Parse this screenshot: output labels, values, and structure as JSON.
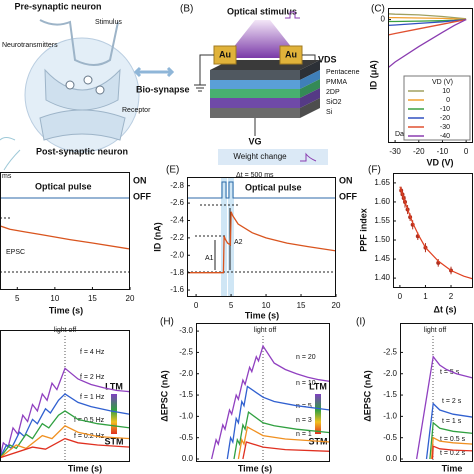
{
  "figure": {
    "panel_a": {
      "labels": [
        "Pre-synaptic neuron",
        "Stimulus",
        "Neurotransmitters",
        "Bio-synapse",
        "Receptor",
        "Post-synaptic neuron"
      ]
    },
    "panel_b": {
      "panel": "(B)",
      "title": "Optical stimulus",
      "electrodes": [
        "Au",
        "Au"
      ],
      "vds": "VDS",
      "layers": [
        "Pentacene",
        "PMMA",
        "2DP",
        "SiO2",
        "Si"
      ],
      "vg": "VG",
      "caption": "Weight change"
    }
  },
  "chart_data": [
    {
      "type": "line",
      "panel": "(C)",
      "xlabel": "VD (V)",
      "ylabel": "ID (μA)",
      "legend": true,
      "legend_title": "VD (V)",
      "annotations": [
        "Dark"
      ],
      "xlim": [
        -33,
        2.9
      ],
      "ylim": [
        -3.2,
        0.3
      ],
      "xticks": [
        -30,
        -20,
        -10,
        0
      ],
      "yticks": [
        0
      ],
      "series": [
        {
          "name": "10",
          "color": "#a0a060",
          "x": [
            -33,
            -30,
            -20,
            -10,
            -5,
            0
          ],
          "y": [
            0.15,
            0.14,
            0.12,
            0.08,
            0.05,
            0.02
          ]
        },
        {
          "name": "0",
          "color": "#f0a030",
          "x": [
            -33,
            -30,
            -20,
            -10,
            -5,
            0
          ],
          "y": [
            0.05,
            0.05,
            0.04,
            0.03,
            0.02,
            0
          ]
        },
        {
          "name": "-10",
          "color": "#3aa040",
          "x": [
            -33,
            -30,
            -20,
            -10,
            -5,
            0
          ],
          "y": [
            -0.05,
            -0.05,
            -0.04,
            -0.03,
            -0.02,
            0
          ]
        },
        {
          "name": "-20",
          "color": "#3050c0",
          "x": [
            -33,
            -30,
            -20,
            -10,
            -5,
            0
          ],
          "y": [
            -0.15,
            -0.14,
            -0.1,
            -0.06,
            -0.03,
            0
          ]
        },
        {
          "name": "-30",
          "color": "#e05030",
          "x": [
            -33,
            -30,
            -20,
            -10,
            -5,
            0
          ],
          "y": [
            -0.4,
            -0.36,
            -0.24,
            -0.12,
            -0.06,
            0
          ]
        },
        {
          "name": "-40",
          "color": "#8a3cb0",
          "x": [
            -33,
            -30,
            -20,
            -10,
            -5,
            0
          ],
          "y": [
            -1.25,
            -1.1,
            -0.7,
            -0.33,
            -0.15,
            0
          ]
        }
      ]
    },
    {
      "type": "line",
      "xlabel": "Time (s)",
      "annotations": [
        "ms",
        "Optical pulse",
        "EPSC",
        "ON",
        "OFF"
      ],
      "xlim": [
        2.7,
        20
      ],
      "ylim": [
        -1.52,
        -2.9
      ],
      "xticks": [
        5,
        10,
        15,
        20
      ],
      "series": [
        {
          "color": "#d9541e",
          "x": [
            2.7,
            4,
            6,
            8,
            10,
            12,
            15,
            20
          ],
          "y": [
            -2.27,
            -2.23,
            -2.2,
            -2.17,
            -2.14,
            -2.11,
            -2.07,
            -2.0
          ]
        }
      ]
    },
    {
      "type": "line",
      "panel": "(E)",
      "xlabel": "Time (s)",
      "ylabel": "ID (nA)",
      "annotations": [
        "Δt = 500 ms",
        "Optical pulse",
        "ON",
        "OFF",
        "A1",
        "A2"
      ],
      "xlim": [
        -1.3,
        20
      ],
      "ylim": [
        -1.52,
        -2.9
      ],
      "xticks": [
        0,
        5,
        10,
        15,
        20
      ],
      "yticks": [
        -2.8,
        -2.6,
        -2.4,
        -2.2,
        -2.0,
        -1.8,
        -1.6
      ],
      "series": [
        {
          "color": "#d9541e",
          "x": [
            -1.3,
            3.9,
            4,
            4.2,
            4.5,
            4.9,
            5,
            5.2,
            6,
            8,
            10,
            13,
            16,
            20
          ],
          "y": [
            -1.8,
            -1.8,
            -2.22,
            -2.18,
            -2.14,
            -2.12,
            -2.5,
            -2.46,
            -2.36,
            -2.26,
            -2.2,
            -2.14,
            -2.1,
            -2.05
          ]
        }
      ]
    },
    {
      "type": "scatter",
      "panel": "(F)",
      "xlabel": "Δt (s)",
      "ylabel": "PPF index",
      "xlim": [
        -0.27,
        2.86
      ],
      "ylim": [
        1.374,
        1.676
      ],
      "xticks": [
        0,
        1,
        2
      ],
      "yticks": [
        1.65,
        1.6,
        1.55,
        1.5,
        1.45,
        1.4
      ],
      "series": [
        {
          "color": "#b03020",
          "x": [
            0.05,
            0.1,
            0.15,
            0.2,
            0.3,
            0.4,
            0.5,
            0.7,
            1.0,
            1.5,
            2.0
          ],
          "y": [
            1.63,
            1.62,
            1.61,
            1.6,
            1.58,
            1.56,
            1.54,
            1.51,
            1.48,
            1.44,
            1.42
          ],
          "errors": [
            0.01,
            0.012,
            0.01,
            0.015,
            0.012,
            0.01,
            0.012,
            0.01,
            0.012,
            0.01,
            0.01
          ]
        },
        {
          "color": "#e04020",
          "mode": "line",
          "x": [
            0,
            0.25,
            0.5,
            0.75,
            1,
            1.5,
            2,
            2.5,
            2.86
          ],
          "y": [
            1.64,
            1.59,
            1.545,
            1.51,
            1.48,
            1.445,
            1.42,
            1.405,
            1.398
          ]
        }
      ]
    },
    {
      "type": "line",
      "xlabel": "Time (s)",
      "annotations": [
        "light off",
        "LTM",
        "STM"
      ],
      "xlim": [
        0,
        40
      ],
      "ylim": [
        0.1,
        -3.0
      ],
      "series": [
        {
          "name": "f = 4 Hz",
          "color": "#9040c0",
          "x": [
            0,
            1,
            2.5,
            4,
            5.5,
            7,
            8.5,
            10,
            11.5,
            13,
            14.5,
            16,
            17.5,
            20,
            24,
            28,
            32,
            36,
            40
          ],
          "y": [
            0,
            -0.35,
            -0.25,
            -0.7,
            -0.55,
            -1.0,
            -0.85,
            -1.25,
            -1.1,
            -1.5,
            -1.35,
            -1.75,
            -1.6,
            -2.1,
            -1.85,
            -1.72,
            -1.64,
            -1.58,
            -1.55
          ]
        },
        {
          "name": "f = 2 Hz",
          "color": "#3060d0",
          "x": [
            0,
            2,
            3.5,
            6,
            7.5,
            10,
            11.5,
            14,
            15.5,
            18,
            20,
            24,
            28,
            34,
            40
          ],
          "y": [
            0,
            -0.3,
            -0.22,
            -0.6,
            -0.5,
            -0.9,
            -0.8,
            -1.15,
            -1.05,
            -1.35,
            -1.5,
            -1.3,
            -1.2,
            -1.1,
            -1.02
          ]
        },
        {
          "name": "f = 1 Hz",
          "color": "#30a040",
          "x": [
            0,
            3,
            5,
            8,
            10,
            13,
            15,
            18,
            20,
            24,
            30,
            40
          ],
          "y": [
            0,
            -0.3,
            -0.22,
            -0.55,
            -0.45,
            -0.8,
            -0.7,
            -1.0,
            -1.1,
            -0.9,
            -0.8,
            -0.7
          ]
        },
        {
          "name": "f = 0.5 Hz",
          "color": "#f09020",
          "x": [
            0,
            5,
            8,
            13,
            16,
            20,
            24,
            30,
            40
          ],
          "y": [
            0,
            -0.3,
            -0.22,
            -0.52,
            -0.45,
            -0.75,
            -0.6,
            -0.5,
            -0.45
          ]
        },
        {
          "name": "f = 0.2 Hz",
          "color": "#e03020",
          "x": [
            0,
            10,
            14,
            20,
            24,
            30,
            40
          ],
          "y": [
            0,
            -0.25,
            -0.2,
            -0.45,
            -0.35,
            -0.3,
            -0.25
          ]
        }
      ]
    },
    {
      "type": "line",
      "panel": "(H)",
      "xlabel": "Time (s)",
      "ylabel": "ΔEPSC (nA)",
      "annotations": [
        "light off",
        "LTM",
        "STM"
      ],
      "xlim": [
        -5,
        55
      ],
      "ylim": [
        0.07,
        -3.19
      ],
      "yticks": [
        -3.0,
        -2.5,
        -2.0,
        -1.5,
        -1.0,
        -0.5,
        0.0
      ],
      "series": [
        {
          "name": "n = 20",
          "color": "#9040c0",
          "x": [
            2,
            4,
            5,
            7,
            8,
            10,
            11,
            13,
            14,
            16,
            17,
            19,
            20,
            22,
            23,
            25,
            30,
            35,
            40,
            45,
            50,
            55
          ],
          "y": [
            0,
            -0.45,
            -0.35,
            -0.8,
            -0.7,
            -1.15,
            -1.05,
            -1.5,
            -1.4,
            -1.85,
            -1.75,
            -2.15,
            -2.05,
            -2.4,
            -2.3,
            -2.65,
            -2.25,
            -2.1,
            -2.0,
            -1.92,
            -1.86,
            -1.82
          ]
        },
        {
          "name": "n = 10",
          "color": "#3060d0",
          "x": [
            9,
            10.5,
            11.5,
            13,
            14,
            15.5,
            16.5,
            18,
            25,
            30,
            40,
            55
          ],
          "y": [
            0,
            -0.5,
            -0.4,
            -0.95,
            -0.85,
            -1.35,
            -1.25,
            -1.7,
            -1.45,
            -1.35,
            -1.25,
            -1.15
          ]
        },
        {
          "name": "n = 5",
          "color": "#30a040",
          "x": [
            12,
            13.5,
            14.5,
            16,
            17,
            18.5,
            25,
            30,
            40,
            55
          ],
          "y": [
            0,
            -0.45,
            -0.35,
            -0.8,
            -0.7,
            -1.1,
            -0.85,
            -0.78,
            -0.7,
            -0.62
          ]
        },
        {
          "name": "n = 3",
          "color": "#f09020",
          "x": [
            14,
            15.5,
            16.5,
            18,
            25,
            35,
            55
          ],
          "y": [
            0,
            -0.45,
            -0.35,
            -0.75,
            -0.55,
            -0.47,
            -0.4
          ]
        },
        {
          "name": "n = 1",
          "color": "#e03020",
          "x": [
            16,
            17.5,
            25,
            35,
            55
          ],
          "y": [
            0,
            -0.4,
            -0.28,
            -0.22,
            -0.18
          ]
        }
      ]
    },
    {
      "type": "line",
      "panel": "(I)",
      "xlabel": "Time",
      "ylabel": "ΔEPSC (nA)",
      "annotations": [
        "light off"
      ],
      "xlim": [
        -2,
        20
      ],
      "ylim": [
        0.07,
        -3.19
      ],
      "yticks": [
        -2.5,
        -2.0,
        -1.5,
        -1.0,
        -0.5,
        0.0
      ],
      "series": [
        {
          "name": "t = 5 s",
          "color": "#9040c0",
          "x": [
            3,
            8,
            10,
            12,
            15,
            20
          ],
          "y": [
            0,
            -2.4,
            -2.2,
            -2.1,
            -2.0,
            -1.9
          ]
        },
        {
          "name": "t = 2 s",
          "color": "#3060d0",
          "x": [
            6,
            8,
            10,
            14,
            20
          ],
          "y": [
            0,
            -1.3,
            -1.15,
            -1.05,
            -0.98
          ]
        },
        {
          "name": "t = 1 s",
          "color": "#30a040",
          "x": [
            7,
            8,
            10,
            14,
            20
          ],
          "y": [
            0,
            -0.85,
            -0.72,
            -0.65,
            -0.6
          ]
        },
        {
          "name": "t = 0.5 s",
          "color": "#f09020",
          "x": [
            7.5,
            8,
            10,
            14,
            20
          ],
          "y": [
            0,
            -0.5,
            -0.42,
            -0.38,
            -0.35
          ]
        },
        {
          "name": "t = 0.2 s",
          "color": "#e03020",
          "x": [
            7.8,
            8,
            10,
            14,
            20
          ],
          "y": [
            0,
            -0.3,
            -0.24,
            -0.21,
            -0.19
          ]
        }
      ]
    }
  ]
}
